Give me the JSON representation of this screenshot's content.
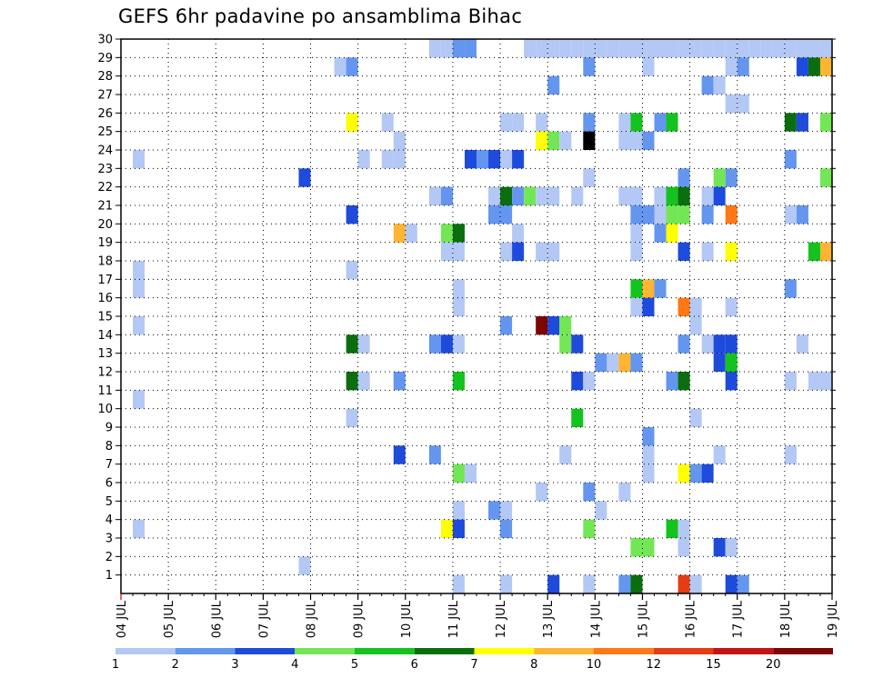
{
  "title": "GEFS 6hr padavine po ansamblima Bihac",
  "colors": {
    "axis": "#000000",
    "grid": "#000000",
    "tick_red": "#d00000"
  },
  "chart_data": {
    "type": "heatmap",
    "title": "GEFS 6hr padavine po ansamblima Bihac",
    "xlabel": "",
    "ylabel": "",
    "x_tick_labels": [
      "04 JUL",
      "05 JUL",
      "06 JUL",
      "07 JUL",
      "08 JUL",
      "09 JUL",
      "10 JUL",
      "11 JUL",
      "12 JUL",
      "13 JUL",
      "14 JUL",
      "15 JUL",
      "16 JUL",
      "17 JUL",
      "18 JUL",
      "19 JUL"
    ],
    "xlim": [
      0,
      60
    ],
    "y_tick_labels": [
      "1",
      "2",
      "3",
      "4",
      "5",
      "6",
      "7",
      "8",
      "9",
      "10",
      "11",
      "12",
      "13",
      "14",
      "15",
      "16",
      "17",
      "18",
      "19",
      "20",
      "21",
      "22",
      "23",
      "24",
      "25",
      "26",
      "27",
      "28",
      "29",
      "30"
    ],
    "ylim": [
      0,
      30
    ],
    "grid": true,
    "legend_position": "bottom",
    "colorbar": {
      "labels": [
        "1",
        "2",
        "3",
        "4",
        "5",
        "6",
        "7",
        "8",
        "10",
        "12",
        "15",
        "20"
      ],
      "colors": [
        "#b4c8f5",
        "#6496f0",
        "#1e4bdc",
        "#73e655",
        "#14c31e",
        "#0a6e0f",
        "#ffff00",
        "#ffb432",
        "#ff7814",
        "#e63c14",
        "#c31414",
        "#7d0505"
      ]
    },
    "cells": [
      [
        27,
        30,
        1
      ],
      [
        28,
        30,
        1
      ],
      [
        29,
        30,
        2
      ],
      [
        30,
        30,
        2
      ],
      [
        35,
        30,
        1
      ],
      [
        36,
        30,
        1
      ],
      [
        37,
        30,
        1
      ],
      [
        38,
        30,
        1
      ],
      [
        39,
        30,
        1
      ],
      [
        40,
        30,
        1
      ],
      [
        41,
        30,
        1
      ],
      [
        42,
        30,
        1
      ],
      [
        43,
        30,
        1
      ],
      [
        44,
        30,
        1
      ],
      [
        45,
        30,
        1
      ],
      [
        46,
        30,
        1
      ],
      [
        47,
        30,
        1
      ],
      [
        48,
        30,
        1
      ],
      [
        49,
        30,
        1
      ],
      [
        50,
        30,
        1
      ],
      [
        51,
        30,
        1
      ],
      [
        52,
        30,
        1
      ],
      [
        53,
        30,
        1
      ],
      [
        54,
        30,
        1
      ],
      [
        55,
        30,
        1
      ],
      [
        56,
        30,
        1
      ],
      [
        57,
        30,
        1
      ],
      [
        58,
        30,
        1
      ],
      [
        59,
        30,
        1
      ],
      [
        60,
        30,
        1
      ],
      [
        19,
        29,
        1
      ],
      [
        20,
        29,
        2
      ],
      [
        40,
        29,
        2
      ],
      [
        45,
        29,
        1
      ],
      [
        52,
        29,
        1
      ],
      [
        53,
        29,
        2
      ],
      [
        58,
        29,
        3
      ],
      [
        59,
        29,
        6
      ],
      [
        60,
        29,
        8
      ],
      [
        37,
        28,
        2
      ],
      [
        50,
        28,
        2
      ],
      [
        51,
        28,
        1
      ],
      [
        52,
        27,
        1
      ],
      [
        53,
        27,
        1
      ],
      [
        20,
        26,
        7
      ],
      [
        23,
        26,
        1
      ],
      [
        33,
        26,
        1
      ],
      [
        34,
        26,
        1
      ],
      [
        36,
        26,
        1
      ],
      [
        40,
        26,
        2
      ],
      [
        43,
        26,
        1
      ],
      [
        44,
        26,
        5
      ],
      [
        46,
        26,
        2
      ],
      [
        47,
        26,
        5
      ],
      [
        57,
        26,
        6
      ],
      [
        58,
        26,
        3
      ],
      [
        60,
        26,
        4
      ],
      [
        24,
        25,
        1
      ],
      [
        36,
        25,
        7
      ],
      [
        37,
        25,
        4
      ],
      [
        38,
        25,
        1
      ],
      [
        40,
        25,
        13
      ],
      [
        43,
        25,
        1
      ],
      [
        44,
        25,
        1
      ],
      [
        45,
        25,
        2
      ],
      [
        2,
        24,
        1
      ],
      [
        21,
        24,
        1
      ],
      [
        23,
        24,
        1
      ],
      [
        24,
        24,
        1
      ],
      [
        30,
        24,
        3
      ],
      [
        31,
        24,
        2
      ],
      [
        32,
        24,
        3
      ],
      [
        33,
        24,
        1
      ],
      [
        34,
        24,
        3
      ],
      [
        57,
        24,
        2
      ],
      [
        16,
        23,
        3
      ],
      [
        40,
        23,
        1
      ],
      [
        48,
        23,
        2
      ],
      [
        51,
        23,
        4
      ],
      [
        52,
        23,
        2
      ],
      [
        60,
        23,
        4
      ],
      [
        27,
        22,
        1
      ],
      [
        28,
        22,
        2
      ],
      [
        32,
        22,
        1
      ],
      [
        33,
        22,
        6
      ],
      [
        34,
        22,
        2
      ],
      [
        35,
        22,
        4
      ],
      [
        36,
        22,
        1
      ],
      [
        37,
        22,
        1
      ],
      [
        39,
        22,
        1
      ],
      [
        43,
        22,
        1
      ],
      [
        44,
        22,
        1
      ],
      [
        46,
        22,
        1
      ],
      [
        47,
        22,
        5
      ],
      [
        48,
        22,
        6
      ],
      [
        50,
        22,
        1
      ],
      [
        51,
        22,
        3
      ],
      [
        20,
        21,
        3
      ],
      [
        32,
        21,
        2
      ],
      [
        33,
        21,
        2
      ],
      [
        44,
        21,
        2
      ],
      [
        45,
        21,
        2
      ],
      [
        46,
        21,
        1
      ],
      [
        47,
        21,
        4
      ],
      [
        48,
        21,
        4
      ],
      [
        50,
        21,
        2
      ],
      [
        52,
        21,
        9
      ],
      [
        57,
        21,
        1
      ],
      [
        58,
        21,
        2
      ],
      [
        61,
        21,
        5
      ],
      [
        24,
        20,
        8
      ],
      [
        25,
        20,
        1
      ],
      [
        28,
        20,
        4
      ],
      [
        29,
        20,
        6
      ],
      [
        34,
        20,
        1
      ],
      [
        44,
        20,
        1
      ],
      [
        46,
        20,
        2
      ],
      [
        47,
        20,
        7
      ],
      [
        28,
        19,
        1
      ],
      [
        29,
        19,
        1
      ],
      [
        33,
        19,
        1
      ],
      [
        34,
        19,
        3
      ],
      [
        36,
        19,
        1
      ],
      [
        37,
        19,
        1
      ],
      [
        44,
        19,
        1
      ],
      [
        48,
        19,
        3
      ],
      [
        50,
        19,
        1
      ],
      [
        52,
        19,
        7
      ],
      [
        59,
        19,
        5
      ],
      [
        60,
        19,
        8
      ],
      [
        2,
        18,
        1
      ],
      [
        20,
        18,
        1
      ],
      [
        2,
        17,
        1
      ],
      [
        29,
        17,
        1
      ],
      [
        44,
        17,
        5
      ],
      [
        45,
        17,
        8
      ],
      [
        46,
        17,
        2
      ],
      [
        57,
        17,
        2
      ],
      [
        29,
        16,
        1
      ],
      [
        44,
        16,
        1
      ],
      [
        45,
        16,
        3
      ],
      [
        48,
        16,
        9
      ],
      [
        49,
        16,
        1
      ],
      [
        52,
        16,
        1
      ],
      [
        61,
        16,
        3
      ],
      [
        2,
        15,
        1
      ],
      [
        33,
        15,
        2
      ],
      [
        36,
        15,
        12
      ],
      [
        37,
        15,
        3
      ],
      [
        38,
        15,
        4
      ],
      [
        49,
        15,
        1
      ],
      [
        20,
        14,
        6
      ],
      [
        21,
        14,
        1
      ],
      [
        27,
        14,
        2
      ],
      [
        28,
        14,
        3
      ],
      [
        29,
        14,
        1
      ],
      [
        38,
        14,
        4
      ],
      [
        39,
        14,
        3
      ],
      [
        48,
        14,
        2
      ],
      [
        50,
        14,
        1
      ],
      [
        51,
        14,
        3
      ],
      [
        52,
        14,
        3
      ],
      [
        58,
        14,
        1
      ],
      [
        41,
        13,
        2
      ],
      [
        42,
        13,
        1
      ],
      [
        43,
        13,
        8
      ],
      [
        44,
        13,
        2
      ],
      [
        51,
        13,
        3
      ],
      [
        52,
        13,
        5
      ],
      [
        20,
        12,
        6
      ],
      [
        21,
        12,
        1
      ],
      [
        24,
        12,
        2
      ],
      [
        29,
        12,
        5
      ],
      [
        39,
        12,
        3
      ],
      [
        40,
        12,
        1
      ],
      [
        47,
        12,
        2
      ],
      [
        48,
        12,
        6
      ],
      [
        52,
        12,
        3
      ],
      [
        57,
        12,
        1
      ],
      [
        59,
        12,
        1
      ],
      [
        60,
        12,
        1
      ],
      [
        61,
        12,
        2
      ],
      [
        2,
        11,
        1
      ],
      [
        20,
        10,
        1
      ],
      [
        39,
        10,
        5
      ],
      [
        49,
        10,
        1
      ],
      [
        45,
        9,
        2
      ],
      [
        24,
        8,
        3
      ],
      [
        27,
        8,
        2
      ],
      [
        38,
        8,
        1
      ],
      [
        45,
        8,
        1
      ],
      [
        51,
        8,
        1
      ],
      [
        57,
        8,
        1
      ],
      [
        29,
        7,
        4
      ],
      [
        30,
        7,
        1
      ],
      [
        45,
        7,
        1
      ],
      [
        48,
        7,
        7
      ],
      [
        49,
        7,
        2
      ],
      [
        50,
        7,
        3
      ],
      [
        36,
        6,
        1
      ],
      [
        40,
        6,
        2
      ],
      [
        43,
        6,
        1
      ],
      [
        29,
        5,
        1
      ],
      [
        32,
        5,
        2
      ],
      [
        33,
        5,
        1
      ],
      [
        41,
        5,
        1
      ],
      [
        2,
        4,
        1
      ],
      [
        28,
        4,
        7
      ],
      [
        29,
        4,
        3
      ],
      [
        33,
        4,
        2
      ],
      [
        40,
        4,
        4
      ],
      [
        47,
        4,
        5
      ],
      [
        48,
        4,
        1
      ],
      [
        44,
        3,
        4
      ],
      [
        45,
        3,
        4
      ],
      [
        48,
        3,
        1
      ],
      [
        51,
        3,
        3
      ],
      [
        52,
        3,
        1
      ],
      [
        16,
        2,
        1
      ],
      [
        29,
        1,
        1
      ],
      [
        33,
        1,
        1
      ],
      [
        37,
        1,
        3
      ],
      [
        40,
        1,
        1
      ],
      [
        43,
        1,
        2
      ],
      [
        44,
        1,
        6
      ],
      [
        48,
        1,
        10
      ],
      [
        49,
        1,
        1
      ],
      [
        52,
        1,
        3
      ],
      [
        53,
        1,
        2
      ]
    ]
  }
}
